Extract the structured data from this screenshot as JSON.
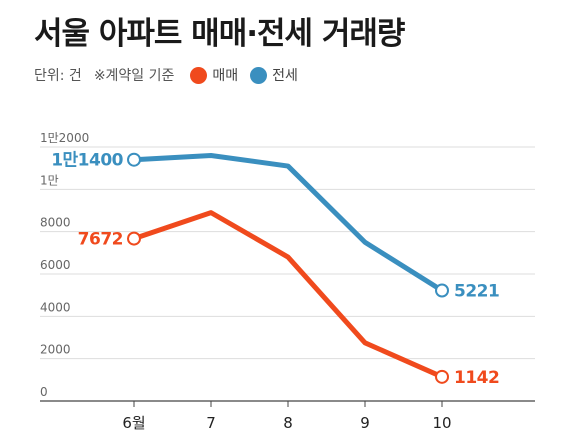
{
  "header": {
    "title": "서울 아파트 매매·전세 거래량",
    "unit": "단위: 건",
    "note": "※계약일 기준"
  },
  "colors": {
    "sale": "#f04a1d",
    "jeonse": "#3a8fbf",
    "grid": "#dddddd",
    "axis": "#444444"
  },
  "chart_data": {
    "type": "line",
    "categories": [
      "6월",
      "7",
      "8",
      "9",
      "10"
    ],
    "series": [
      {
        "name": "매매",
        "color": "#f04a1d",
        "values": [
          7672,
          8900,
          6800,
          2750,
          1142
        ]
      },
      {
        "name": "전세",
        "color": "#3a8fbf",
        "values": [
          11400,
          11600,
          11100,
          7500,
          5221
        ]
      }
    ],
    "point_labels": [
      {
        "series": 0,
        "index": 0,
        "text": "7672"
      },
      {
        "series": 0,
        "index": 4,
        "text": "1142"
      },
      {
        "series": 1,
        "index": 0,
        "text": "1만1400"
      },
      {
        "series": 1,
        "index": 4,
        "text": "5221"
      }
    ],
    "y_ticks": [
      0,
      2000,
      4000,
      6000,
      8000,
      10000,
      12000
    ],
    "y_tick_labels": [
      "0",
      "2000",
      "4000",
      "6000",
      "8000",
      "1만",
      "1만2000"
    ],
    "ylim": [
      0,
      12000
    ],
    "grid": true,
    "legend": "top-left"
  }
}
